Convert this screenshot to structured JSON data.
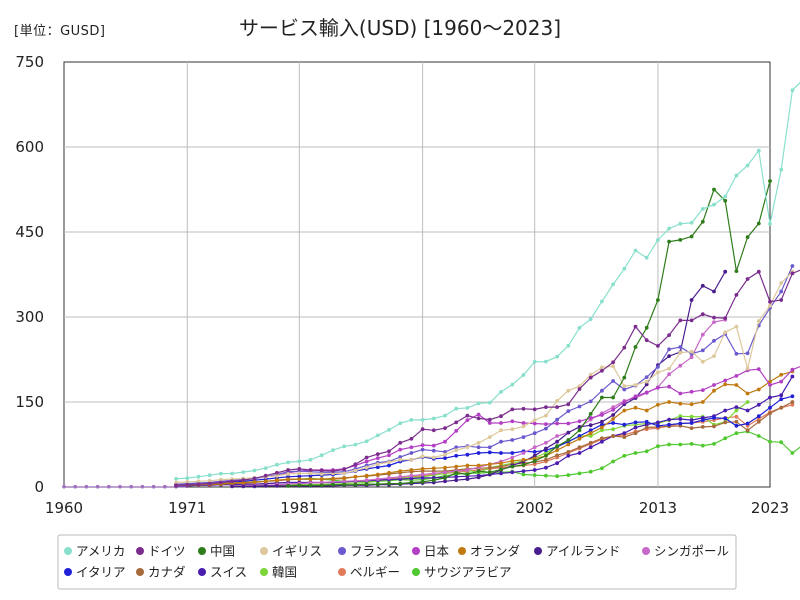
{
  "chart_data": {
    "type": "line",
    "title": "サービス輸入(USD) [1960〜2023]",
    "unit": "[単位：GUSD]",
    "xlim": [
      1960,
      2023
    ],
    "ylim": [
      0,
      750
    ],
    "x_ticks": [
      "1960",
      "1971",
      "1981",
      "1992",
      "2002",
      "2013",
      "2023"
    ],
    "y_ticks": [
      "0",
      "150",
      "300",
      "450",
      "600",
      "750"
    ],
    "grid": true,
    "legend_position": "bottom",
    "series": [
      {
        "name": "アメリカ",
        "color": "#88e0cc",
        "start": 1970,
        "values": [
          14.5,
          15.7,
          18.2,
          20.8,
          23.7,
          23.9,
          26.3,
          29.1,
          33.3,
          39.4,
          43.4,
          45.3,
          48.0,
          56.0,
          65.1,
          71.7,
          74.8,
          80.7,
          91.1,
          100.8,
          112.5,
          118.4,
          118.5,
          120.8,
          126.0,
          138.2,
          139.5,
          147.5,
          148.7,
          167.8,
          180.7,
          197.6,
          220.9,
          221.3,
          230.1,
          249.2,
          280.9,
          296.1,
          327.5,
          357.6,
          385.0,
          417.4,
          404.5,
          435.9,
          456.2,
          464.5,
          466.2,
          490.8,
          498.3,
          512.7,
          549.7,
          567.4,
          593.6,
          464.4,
          560.0,
          700.0,
          720.0
        ]
      },
      {
        "name": "ドイツ",
        "color": "#7b2d8e",
        "start": 1970,
        "values": [
          3,
          4,
          5,
          6,
          8,
          10,
          12,
          15,
          20,
          25,
          30,
          32,
          30,
          29,
          28,
          31,
          40,
          52,
          58,
          63,
          78,
          85,
          102,
          100,
          104,
          114,
          126,
          121,
          119,
          125,
          137,
          138,
          137,
          141,
          141,
          146,
          173,
          193,
          205,
          220,
          246,
          283,
          259,
          249,
          268,
          294,
          294,
          305,
          299,
          298,
          339,
          367,
          380,
          327,
          330,
          377,
          385,
          385
        ]
      },
      {
        "name": "中国",
        "color": "#2e7d1a",
        "start": 1980,
        "values": [
          2,
          3,
          3,
          3,
          4,
          4,
          4,
          5,
          5,
          6,
          6,
          8,
          9,
          12,
          16,
          25,
          22,
          28,
          26,
          31,
          36,
          39,
          46,
          55,
          72,
          83,
          100,
          129,
          158,
          158,
          193,
          247,
          281,
          330,
          433,
          436,
          442,
          468,
          525,
          505,
          381,
          441,
          465,
          540
        ]
      },
      {
        "name": "イギリス",
        "color": "#dcc89a",
        "start": 1970,
        "values": [
          8,
          9,
          10,
          11,
          13,
          14,
          15,
          16,
          18,
          20,
          23,
          24,
          24,
          23,
          24,
          24,
          29,
          34,
          40,
          44,
          48,
          48,
          54,
          52,
          57,
          65,
          70,
          78,
          88,
          100,
          102,
          107,
          118,
          126,
          152,
          170,
          178,
          198,
          211,
          213,
          178,
          180,
          186,
          202,
          209,
          237,
          239,
          221,
          231,
          273,
          283,
          209,
          293,
          320,
          360,
          380
        ]
      },
      {
        "name": "フランス",
        "color": "#6a5acd",
        "start": 1970,
        "values": [
          5,
          6,
          7,
          8,
          10,
          11,
          13,
          15,
          18,
          22,
          27,
          28,
          27,
          26,
          26,
          27,
          32,
          38,
          43,
          45,
          53,
          60,
          66,
          64,
          62,
          70,
          72,
          70,
          70,
          80,
          83,
          88,
          95,
          103,
          119,
          134,
          142,
          151,
          170,
          187,
          172,
          179,
          194,
          212,
          243,
          247,
          235,
          241,
          258,
          270,
          235,
          236,
          285,
          316,
          345,
          390
        ]
      },
      {
        "name": "日本",
        "color": "#b33fc4",
        "start": 1970,
        "values": [
          4,
          5,
          6,
          8,
          10,
          12,
          14,
          16,
          18,
          20,
          25,
          28,
          30,
          30,
          30,
          32,
          38,
          45,
          51,
          56,
          66,
          70,
          74,
          73,
          80,
          99,
          118,
          128,
          113,
          113,
          116,
          113,
          112,
          111,
          112,
          112,
          116,
          122,
          127,
          136,
          150,
          160,
          167,
          175,
          177,
          165,
          168,
          171,
          180,
          188,
          196,
          206,
          208,
          180,
          186,
          207,
          215,
          225
        ]
      },
      {
        "name": "オランダ",
        "color": "#c07a10",
        "start": 1970,
        "values": [
          3,
          4,
          4,
          5,
          6,
          7,
          8,
          9,
          10,
          12,
          14,
          14,
          14,
          14,
          14,
          15,
          18,
          20,
          22,
          25,
          28,
          30,
          32,
          33,
          34,
          36,
          38,
          38,
          40,
          42,
          46,
          48,
          50,
          55,
          65,
          75,
          85,
          95,
          105,
          120,
          135,
          140,
          135,
          145,
          150,
          147,
          146,
          150,
          170,
          181,
          180,
          165,
          172,
          186,
          198,
          204
        ]
      },
      {
        "name": "アイルランド",
        "color": "#4a1d8e",
        "start": 1975,
        "values": [
          1,
          1,
          1,
          2,
          2,
          2,
          2,
          2,
          2,
          2,
          3,
          3,
          3,
          4,
          4,
          5,
          6,
          7,
          8,
          10,
          12,
          14,
          17,
          22,
          30,
          38,
          45,
          55,
          68,
          80,
          96,
          106,
          109,
          115,
          127,
          146,
          157,
          181,
          215,
          231,
          238,
          330,
          355,
          345,
          380
        ]
      },
      {
        "name": "シンガポール",
        "color": "#c868c8",
        "start": 1975,
        "values": [
          2,
          2,
          3,
          3,
          4,
          5,
          6,
          7,
          8,
          9,
          10,
          11,
          12,
          14,
          16,
          18,
          20,
          22,
          24,
          26,
          28,
          30,
          35,
          40,
          45,
          52,
          60,
          70,
          78,
          90,
          96,
          106,
          119,
          130,
          141,
          152,
          157,
          166,
          176,
          199,
          214,
          229,
          269,
          291,
          295
        ]
      },
      {
        "name": "イタリア",
        "color": "#2020d8",
        "start": 1970,
        "values": [
          3,
          4,
          5,
          6,
          8,
          9,
          10,
          12,
          14,
          16,
          18,
          19,
          20,
          21,
          22,
          24,
          28,
          32,
          35,
          38,
          45,
          48,
          53,
          50,
          51,
          55,
          57,
          60,
          61,
          60,
          60,
          63,
          62,
          65,
          71,
          80,
          90,
          100,
          110,
          113,
          110,
          114,
          115,
          108,
          110,
          112,
          113,
          118,
          122,
          121,
          108,
          112,
          125,
          140,
          155,
          160
        ]
      },
      {
        "name": "カナダ",
        "color": "#a66a3c",
        "start": 1970,
        "values": [
          3,
          3,
          4,
          4,
          5,
          6,
          7,
          8,
          10,
          11,
          13,
          14,
          14,
          14,
          15,
          16,
          18,
          19,
          21,
          23,
          25,
          27,
          28,
          28,
          28,
          30,
          32,
          33,
          34,
          36,
          40,
          42,
          44,
          48,
          56,
          62,
          70,
          78,
          86,
          90,
          88,
          95,
          105,
          106,
          107,
          108,
          104,
          106,
          107,
          114,
          115,
          100,
          115,
          130,
          140,
          150
        ]
      },
      {
        "name": "スイス",
        "color": "#4a1daf",
        "start": 1970,
        "values": [
          2,
          2,
          3,
          3,
          4,
          4,
          5,
          5,
          6,
          7,
          8,
          8,
          8,
          8,
          8,
          9,
          10,
          11,
          12,
          13,
          14,
          15,
          16,
          16,
          17,
          18,
          19,
          20,
          22,
          24,
          26,
          28,
          30,
          34,
          42,
          55,
          60,
          70,
          80,
          90,
          95,
          105,
          110,
          114,
          119,
          120,
          118,
          122,
          125,
          135,
          141,
          135,
          145,
          158,
          162,
          195
        ]
      },
      {
        "name": "韓国",
        "color": "#7ed53a",
        "start": 1975,
        "values": [
          2,
          2,
          2,
          3,
          3,
          4,
          4,
          4,
          5,
          5,
          6,
          7,
          8,
          10,
          12,
          15,
          17,
          18,
          21,
          24,
          28,
          30,
          25,
          34,
          38,
          42,
          46,
          52,
          60,
          72,
          80,
          90,
          90,
          100,
          102,
          108,
          110,
          112,
          112,
          118,
          125,
          124,
          124,
          110,
          115,
          135,
          150
        ]
      },
      {
        "name": "ベルギー",
        "color": "#e07a5a",
        "start": 1970,
        "values": [
          2,
          2,
          3,
          3,
          4,
          4,
          5,
          5,
          6,
          7,
          8,
          8,
          8,
          8,
          8,
          9,
          10,
          11,
          12,
          14,
          16,
          18,
          20,
          22,
          24,
          26,
          28,
          30,
          32,
          34,
          36,
          38,
          40,
          45,
          52,
          60,
          68,
          76,
          84,
          90,
          92,
          98,
          102,
          104,
          108,
          112,
          113,
          115,
          118,
          122,
          124,
          108,
          120,
          132,
          140,
          145
        ]
      },
      {
        "name": "サウジアラビア",
        "color": "#50c830",
        "start": 1975,
        "values": [
          6,
          8,
          9,
          10,
          12,
          13,
          14,
          15,
          14,
          12,
          10,
          10,
          10,
          10,
          11,
          13,
          12,
          13,
          16,
          20,
          22,
          25,
          24,
          26,
          26,
          27,
          22,
          21,
          20,
          19,
          21,
          24,
          27,
          33,
          45,
          55,
          60,
          63,
          72,
          75,
          75,
          76,
          73,
          76,
          86,
          95,
          98,
          90,
          80,
          79,
          60,
          75,
          81,
          95,
          97
        ]
      }
    ]
  }
}
